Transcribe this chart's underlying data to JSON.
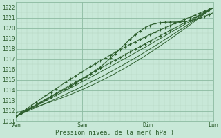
{
  "title": "",
  "xlabel": "Pression niveau de la mer( hPa )",
  "bg_color": "#c8e8d8",
  "grid_major_color": "#8cbaa0",
  "grid_minor_color": "#b0d4be",
  "line_color": "#2d5e2d",
  "tick_label_color": "#2d5e2d",
  "ylim": [
    1011.0,
    1022.5
  ],
  "yticks": [
    1011,
    1012,
    1013,
    1014,
    1015,
    1016,
    1017,
    1018,
    1019,
    1020,
    1021,
    1022
  ],
  "xlim": [
    0,
    72
  ],
  "xtick_positions": [
    0,
    24,
    48,
    72
  ],
  "xtick_labels": [
    "Ven",
    "Sam",
    "Dim",
    "Lun"
  ]
}
